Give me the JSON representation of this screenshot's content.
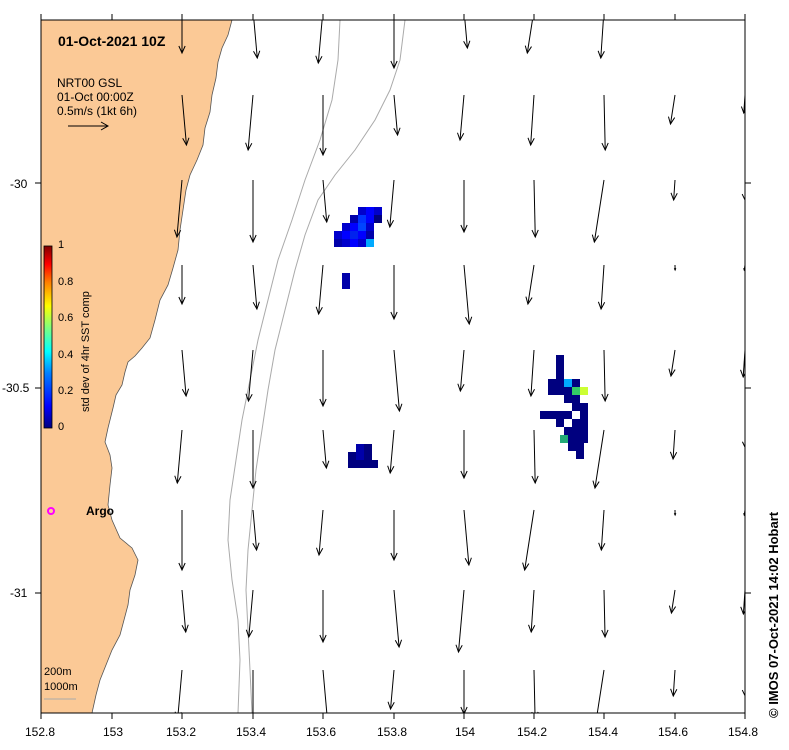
{
  "title": "01-Oct-2021 10Z",
  "legend": {
    "product": "NRT00 GSL",
    "time": "01-Oct 00:00Z",
    "scale": "0.5m/s (1kt 6h)"
  },
  "colorbar": {
    "label": "std dev of 4hr SST comp",
    "ticks": [
      "1",
      "0.8",
      "0.6",
      "0.4",
      "0.2",
      "0"
    ],
    "colors": [
      "#00007f",
      "#0000ff",
      "#007fff",
      "#00ffff",
      "#7fff7f",
      "#ffff00",
      "#ff7f00",
      "#ff0000",
      "#7f0000"
    ]
  },
  "axes": {
    "x_ticks": [
      "152.8",
      "153",
      "153.2",
      "153.4",
      "153.6",
      "153.8",
      "154",
      "154.2",
      "154.4",
      "154.6",
      "154.8"
    ],
    "y_ticks": [
      "-30",
      "-30.5",
      "-31"
    ],
    "xlim": [
      152.8,
      154.8
    ],
    "ylim": [
      -31.3,
      -29.6
    ]
  },
  "argo": {
    "label": "Argo",
    "color": "#ff00ff"
  },
  "bathymetry": {
    "contour1": "200m",
    "contour2": "1000m"
  },
  "credit": "© IMOS 07-Oct-2021 14:02 Hobart",
  "colors": {
    "land": "#fbc996",
    "contour": "#aaaaaa"
  }
}
